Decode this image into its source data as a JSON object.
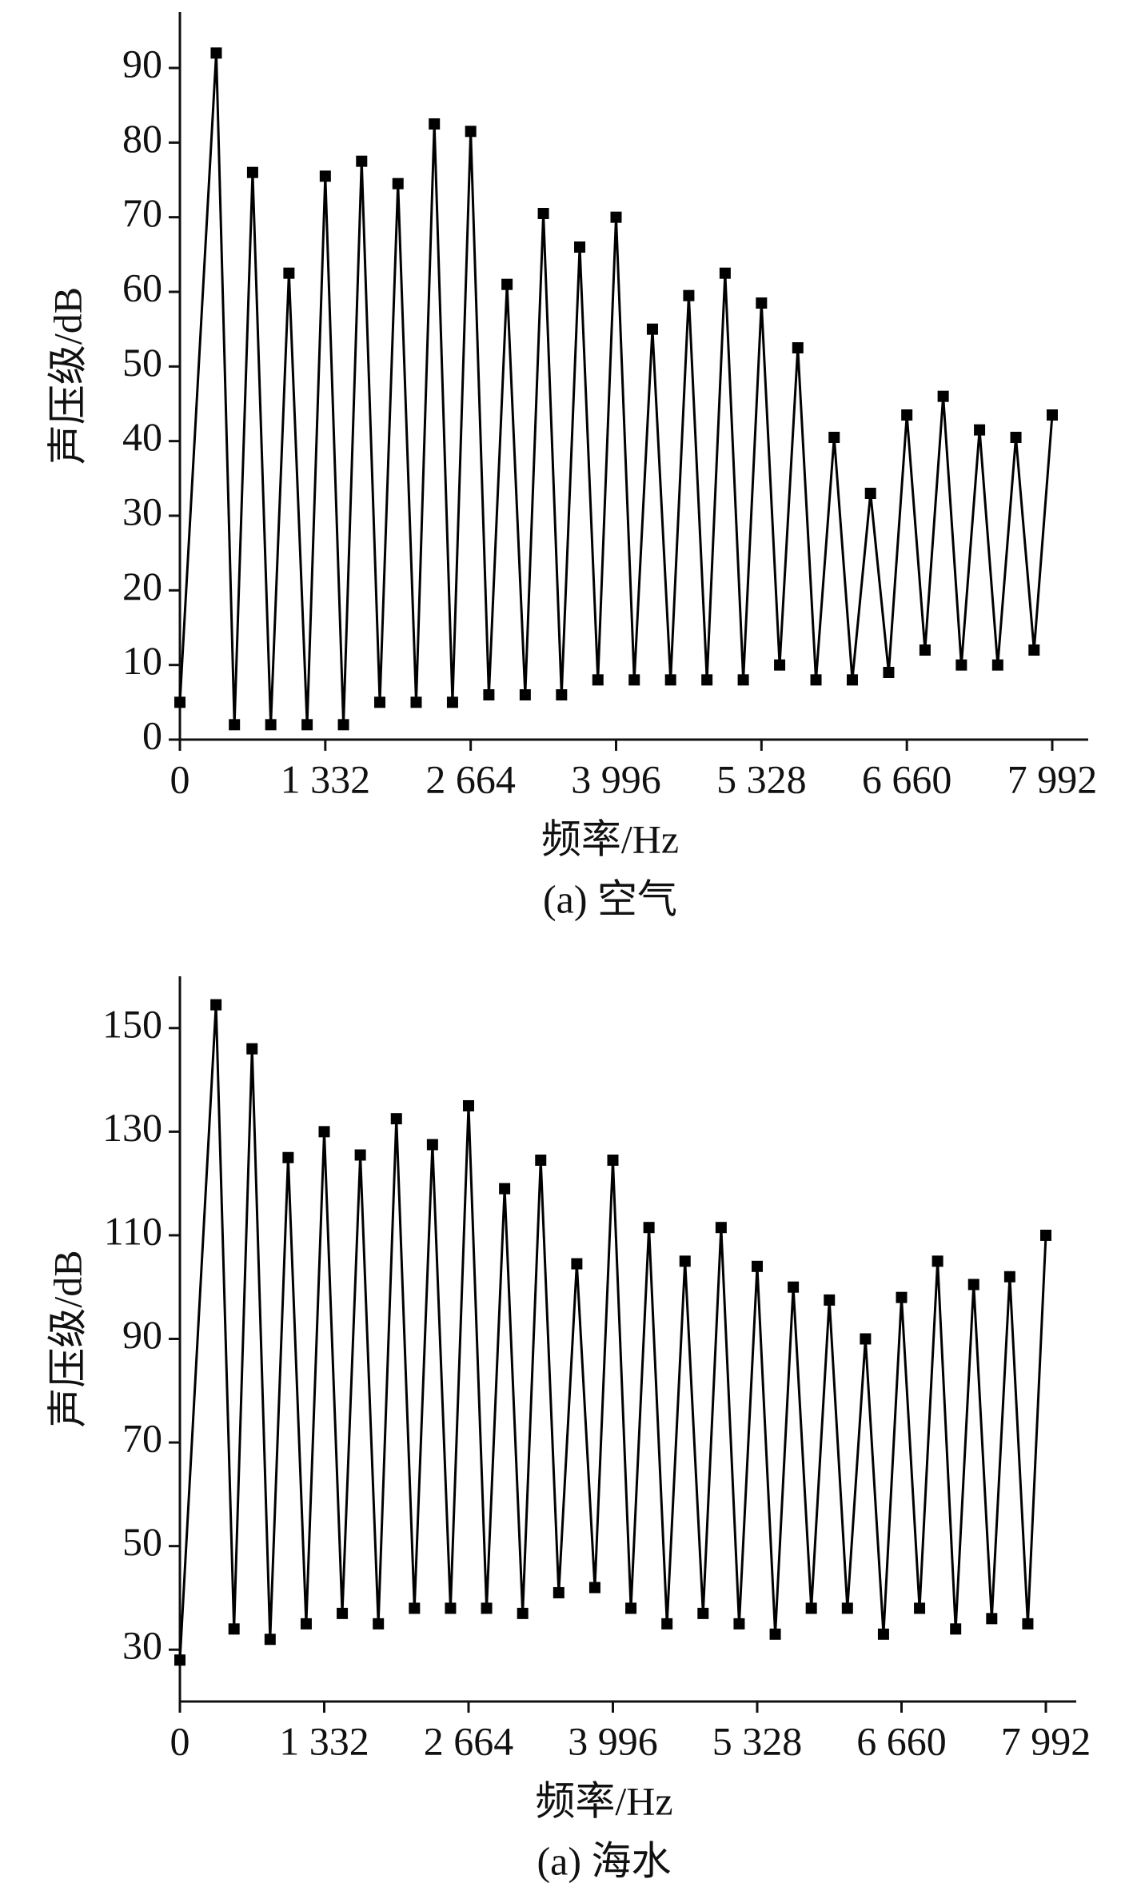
{
  "chart_data": [
    {
      "type": "line",
      "title": "(a) 空气",
      "x_label": "频率/Hz",
      "y_label": "声压级/dB",
      "color": "#000000",
      "marker": "square",
      "x": [
        0,
        333,
        499.5,
        666,
        832.5,
        999,
        1165.5,
        1332,
        1498.5,
        1665,
        1831.5,
        1998,
        2164.5,
        2331,
        2497.5,
        2664,
        2830.5,
        2997,
        3163.5,
        3330,
        3496.5,
        3663,
        3829.5,
        3996,
        4162.5,
        4329,
        4495.5,
        4662,
        4828.5,
        4995,
        5161.5,
        5328,
        5494.5,
        5661,
        5827.5,
        5994,
        6160.5,
        6327,
        6493.5,
        6660,
        6826.5,
        6993,
        7159.5,
        7326,
        7492.5,
        7659,
        7825.5,
        7992
      ],
      "values": [
        5,
        92,
        2,
        76,
        2,
        62.5,
        2,
        75.5,
        2,
        77.5,
        5,
        74.5,
        5,
        82.5,
        5,
        81.5,
        6,
        61,
        6,
        70.5,
        6,
        66,
        8,
        70,
        8,
        55,
        8,
        59.5,
        8,
        62.5,
        8,
        58.5,
        10,
        52.5,
        8,
        40.5,
        8,
        33,
        9,
        43.5,
        12,
        46,
        10,
        41.5,
        10,
        40.5,
        12,
        43.5
      ],
      "xlim": [
        0,
        7992
      ],
      "xticks": [
        0,
        {
          "value": 1332,
          "label": "1 332"
        },
        {
          "value": 2664,
          "label": "2 664"
        },
        {
          "value": 3996,
          "label": "3 996"
        },
        {
          "value": 5328,
          "label": "5 328"
        },
        {
          "value": 6660,
          "label": "6 660"
        },
        {
          "value": 7992,
          "label": "7 992"
        }
      ],
      "ylim": [
        0,
        97.5
      ],
      "yticks": [
        0,
        10,
        20,
        30,
        40,
        50,
        60,
        70,
        80,
        90
      ]
    },
    {
      "type": "line",
      "title": "(a) 海水",
      "x_label": "频率/Hz",
      "y_label": "声压级/dB",
      "color": "#000000",
      "marker": "square",
      "x": [
        0,
        333,
        499.5,
        666,
        832.5,
        999,
        1165.5,
        1332,
        1498.5,
        1665,
        1831.5,
        1998,
        2164.5,
        2331,
        2497.5,
        2664,
        2830.5,
        2997,
        3163.5,
        3330,
        3496.5,
        3663,
        3829.5,
        3996,
        4162.5,
        4329,
        4495.5,
        4662,
        4828.5,
        4995,
        5161.5,
        5328,
        5494.5,
        5661,
        5827.5,
        5994,
        6160.5,
        6327,
        6493.5,
        6660,
        6826.5,
        6993,
        7159.5,
        7326,
        7492.5,
        7659,
        7825.5,
        7992
      ],
      "values": [
        28,
        154.5,
        34,
        146,
        32,
        125,
        35,
        130,
        37,
        125.5,
        35,
        132.5,
        38,
        127.5,
        38,
        135,
        38,
        119,
        37,
        124.5,
        41,
        104.5,
        42,
        124.5,
        38,
        111.5,
        35,
        105,
        37,
        111.5,
        35,
        104,
        33,
        100,
        38,
        97.5,
        38,
        90,
        33,
        98,
        38,
        105,
        34,
        100.5,
        36,
        102,
        35,
        110
      ],
      "xlim": [
        0,
        7992
      ],
      "xticks": [
        0,
        {
          "value": 1332,
          "label": "1 332"
        },
        {
          "value": 2664,
          "label": "2 664"
        },
        {
          "value": 3996,
          "label": "3 996"
        },
        {
          "value": 5328,
          "label": "5 328"
        },
        {
          "value": 6660,
          "label": "6 660"
        },
        {
          "value": 7992,
          "label": "7 992"
        }
      ],
      "ylim": [
        20,
        160
      ],
      "yticks": [
        30,
        50,
        70,
        90,
        110,
        130,
        150
      ]
    }
  ]
}
